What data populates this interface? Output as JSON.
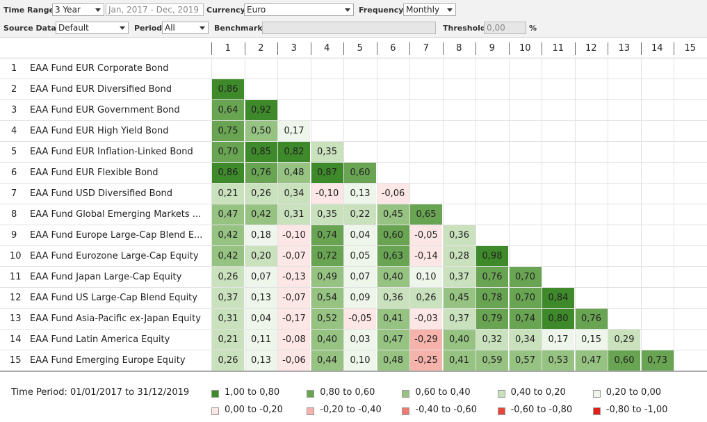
{
  "toolbar": {
    "time_range_label": "Time Range",
    "time_range": "3 Year",
    "date_range": "Jan, 2017 - Dec, 2019",
    "currency_label": "Currency",
    "currency": "Euro",
    "frequency_label": "Frequency",
    "frequency": "Monthly",
    "source_label": "Source Data",
    "source": "Default",
    "period_label": "Period",
    "period": "All",
    "benchmark_label": "Benchmark",
    "threshold_label": "Threshold",
    "threshold": "0,00",
    "threshold_unit": "%"
  },
  "matrix": {
    "columns": [
      1,
      2,
      3,
      4,
      5,
      6,
      7,
      8,
      9,
      10,
      11,
      12,
      13,
      14,
      15
    ],
    "rows": [
      {
        "number": 1,
        "name": "EAA Fund EUR Corporate Bond",
        "values": []
      },
      {
        "number": 2,
        "name": "EAA Fund EUR Diversified Bond",
        "values": [
          "0,86"
        ]
      },
      {
        "number": 3,
        "name": "EAA Fund EUR Government Bond",
        "values": [
          "0,64",
          "0,92"
        ]
      },
      {
        "number": 4,
        "name": "EAA Fund EUR High Yield Bond",
        "values": [
          "0,75",
          "0,50",
          "0,17"
        ]
      },
      {
        "number": 5,
        "name": "EAA Fund EUR Inflation-Linked Bond",
        "values": [
          "0,70",
          "0,85",
          "0,82",
          "0,35"
        ]
      },
      {
        "number": 6,
        "name": "EAA Fund EUR Flexible Bond",
        "values": [
          "0,86",
          "0,76",
          "0,48",
          "0,87",
          "0,60"
        ]
      },
      {
        "number": 7,
        "name": "EAA Fund USD Diversified Bond",
        "values": [
          "0,21",
          "0,26",
          "0,34",
          "-0,10",
          "0,13",
          "-0,06"
        ]
      },
      {
        "number": 8,
        "name": "EAA Fund Global Emerging Markets ...",
        "values": [
          "0,47",
          "0,42",
          "0,31",
          "0,35",
          "0,22",
          "0,45",
          "0,65"
        ]
      },
      {
        "number": 9,
        "name": "EAA Fund Europe Large-Cap Blend E...",
        "values": [
          "0,42",
          "0,18",
          "-0,10",
          "0,74",
          "0,04",
          "0,60",
          "-0,05",
          "0,36"
        ]
      },
      {
        "number": 10,
        "name": "EAA Fund Eurozone Large-Cap Equity",
        "values": [
          "0,42",
          "0,20",
          "-0,07",
          "0,72",
          "0,05",
          "0,63",
          "-0,14",
          "0,28",
          "0,98"
        ]
      },
      {
        "number": 11,
        "name": "EAA Fund Japan Large-Cap Equity",
        "values": [
          "0,26",
          "0,07",
          "-0,13",
          "0,49",
          "0,07",
          "0,40",
          "0,10",
          "0,37",
          "0,76",
          "0,70"
        ]
      },
      {
        "number": 12,
        "name": "EAA Fund US Large-Cap Blend Equity",
        "values": [
          "0,37",
          "0,13",
          "-0,07",
          "0,54",
          "0,09",
          "0,36",
          "0,26",
          "0,45",
          "0,78",
          "0,70",
          "0,84"
        ]
      },
      {
        "number": 13,
        "name": "EAA Fund Asia-Pacific ex-Japan Equity",
        "values": [
          "0,31",
          "0,04",
          "-0,17",
          "0,52",
          "-0,05",
          "0,41",
          "-0,03",
          "0,37",
          "0,79",
          "0,74",
          "0,80",
          "0,76"
        ]
      },
      {
        "number": 14,
        "name": "EAA Fund Latin America Equity",
        "values": [
          "0,21",
          "0,11",
          "-0,08",
          "0,40",
          "0,03",
          "0,47",
          "-0,29",
          "0,40",
          "0,32",
          "0,34",
          "0,17",
          "0,15",
          "0,29"
        ]
      },
      {
        "number": 15,
        "name": "EAA Fund Emerging Europe Equity",
        "values": [
          "0,26",
          "0,13",
          "-0,06",
          "0,44",
          "0,10",
          "0,48",
          "-0,25",
          "0,41",
          "0,59",
          "0,57",
          "0,53",
          "0,47",
          "0,60",
          "0,73"
        ]
      }
    ]
  },
  "legend": {
    "period": "Time Period: 01/01/2017 to 31/12/2019",
    "items": [
      {
        "label": "1,00 to 0,80",
        "color": "#3e8a2b"
      },
      {
        "label": "0,80 to 0,60",
        "color": "#69a453"
      },
      {
        "label": "0,60 to 0,40",
        "color": "#96c282"
      },
      {
        "label": "0,40 to 0,20",
        "color": "#c9e1bd"
      },
      {
        "label": "0,20 to 0,00",
        "color": "#eef5ea"
      },
      {
        "label": "0,00 to -0,20",
        "color": "#fde6e6"
      },
      {
        "label": "-0,20 to -0,40",
        "color": "#f6b3ac"
      },
      {
        "label": "-0,40 to -0,60",
        "color": "#ef7b70"
      },
      {
        "label": "-0,60 to -0,80",
        "color": "#e8473c"
      },
      {
        "label": "-0,80 to -1,00",
        "color": "#e0201a"
      }
    ]
  }
}
